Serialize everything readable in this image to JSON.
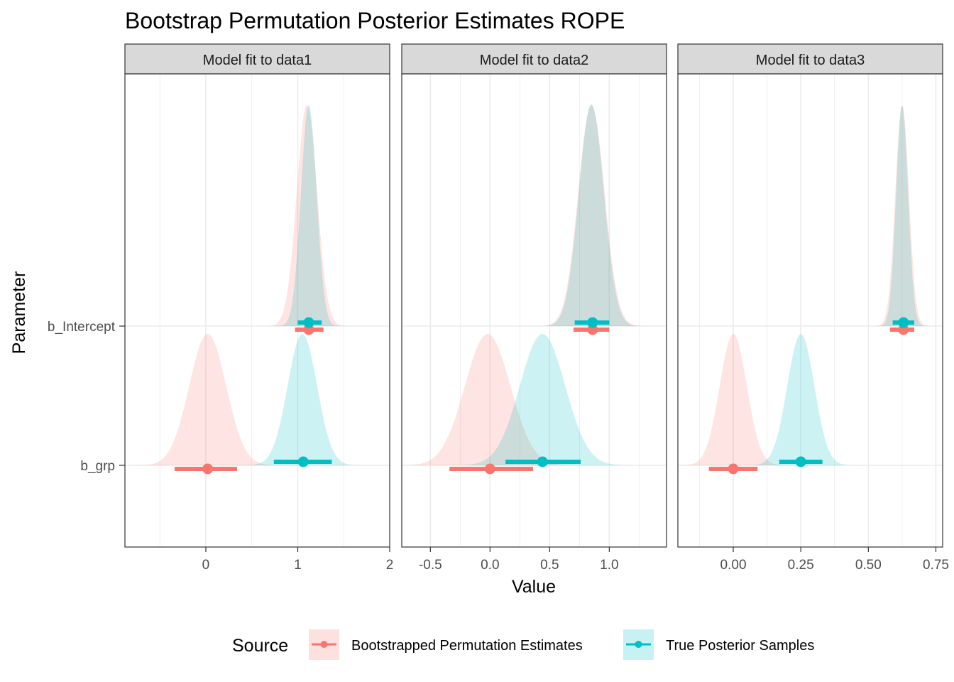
{
  "chart_data": {
    "type": "density",
    "title": "Bootstrap Permutation Posterior Estimates ROPE",
    "xlabel": "Value",
    "ylabel": "Parameter",
    "grid": true,
    "parameters": [
      "b_Intercept",
      "b_grp"
    ],
    "legend": {
      "title": "Source",
      "position": "bottom",
      "entries": [
        {
          "name": "Bootstrapped Permutation Estimates",
          "color": "#F8766D"
        },
        {
          "name": "True Posterior Samples",
          "color": "#00BFC4"
        }
      ]
    },
    "colors": {
      "boot": "#F8766D",
      "true": "#00BFC4"
    },
    "panels": [
      {
        "label": "Model fit to data1",
        "xlim": [
          -0.88,
          2.0
        ],
        "ticks": [
          0,
          1,
          2
        ],
        "tick_labels": [
          "0",
          "1",
          "2"
        ],
        "series": {
          "b_Intercept": {
            "boot": {
              "mean": 1.1,
              "sd": 0.11,
              "point": 1.12,
              "interval": [
                0.97,
                1.28
              ]
            },
            "true": {
              "mean": 1.12,
              "sd": 0.085,
              "point": 1.12,
              "interval": [
                1.0,
                1.26
              ]
            }
          },
          "b_grp": {
            "boot": {
              "mean": 0.02,
              "sd": 0.2,
              "point": 0.02,
              "interval": [
                -0.34,
                0.34
              ]
            },
            "true": {
              "mean": 1.05,
              "sd": 0.16,
              "point": 1.06,
              "interval": [
                0.74,
                1.37
              ]
            }
          }
        }
      },
      {
        "label": "Model fit to data2",
        "xlim": [
          -0.74,
          1.48
        ],
        "ticks": [
          -0.5,
          0.0,
          0.5,
          1.0
        ],
        "tick_labels": [
          "-0.5",
          "0.0",
          "0.5",
          "1.0"
        ],
        "series": {
          "b_Intercept": {
            "boot": {
              "mean": 0.85,
              "sd": 0.11,
              "point": 0.86,
              "interval": [
                0.7,
                1.0
              ]
            },
            "true": {
              "mean": 0.85,
              "sd": 0.105,
              "point": 0.86,
              "interval": [
                0.71,
                1.0
              ]
            }
          },
          "b_grp": {
            "boot": {
              "mean": -0.02,
              "sd": 0.19,
              "point": 0.0,
              "interval": [
                -0.34,
                0.36
              ]
            },
            "true": {
              "mean": 0.44,
              "sd": 0.19,
              "point": 0.44,
              "interval": [
                0.13,
                0.76
              ]
            }
          }
        }
      },
      {
        "label": "Model fit to data3",
        "xlim": [
          -0.205,
          0.775
        ],
        "ticks": [
          0.0,
          0.25,
          0.5,
          0.75
        ],
        "tick_labels": [
          "0.00",
          "0.25",
          "0.50",
          "0.75"
        ],
        "series": {
          "b_Intercept": {
            "boot": {
              "mean": 0.625,
              "sd": 0.025,
              "point": 0.63,
              "interval": [
                0.58,
                0.67
              ]
            },
            "true": {
              "mean": 0.625,
              "sd": 0.022,
              "point": 0.63,
              "interval": [
                0.59,
                0.67
              ]
            }
          },
          "b_grp": {
            "boot": {
              "mean": 0.0,
              "sd": 0.05,
              "point": 0.0,
              "interval": [
                -0.09,
                0.09
              ]
            },
            "true": {
              "mean": 0.25,
              "sd": 0.05,
              "point": 0.25,
              "interval": [
                0.17,
                0.33
              ]
            }
          }
        }
      }
    ]
  }
}
